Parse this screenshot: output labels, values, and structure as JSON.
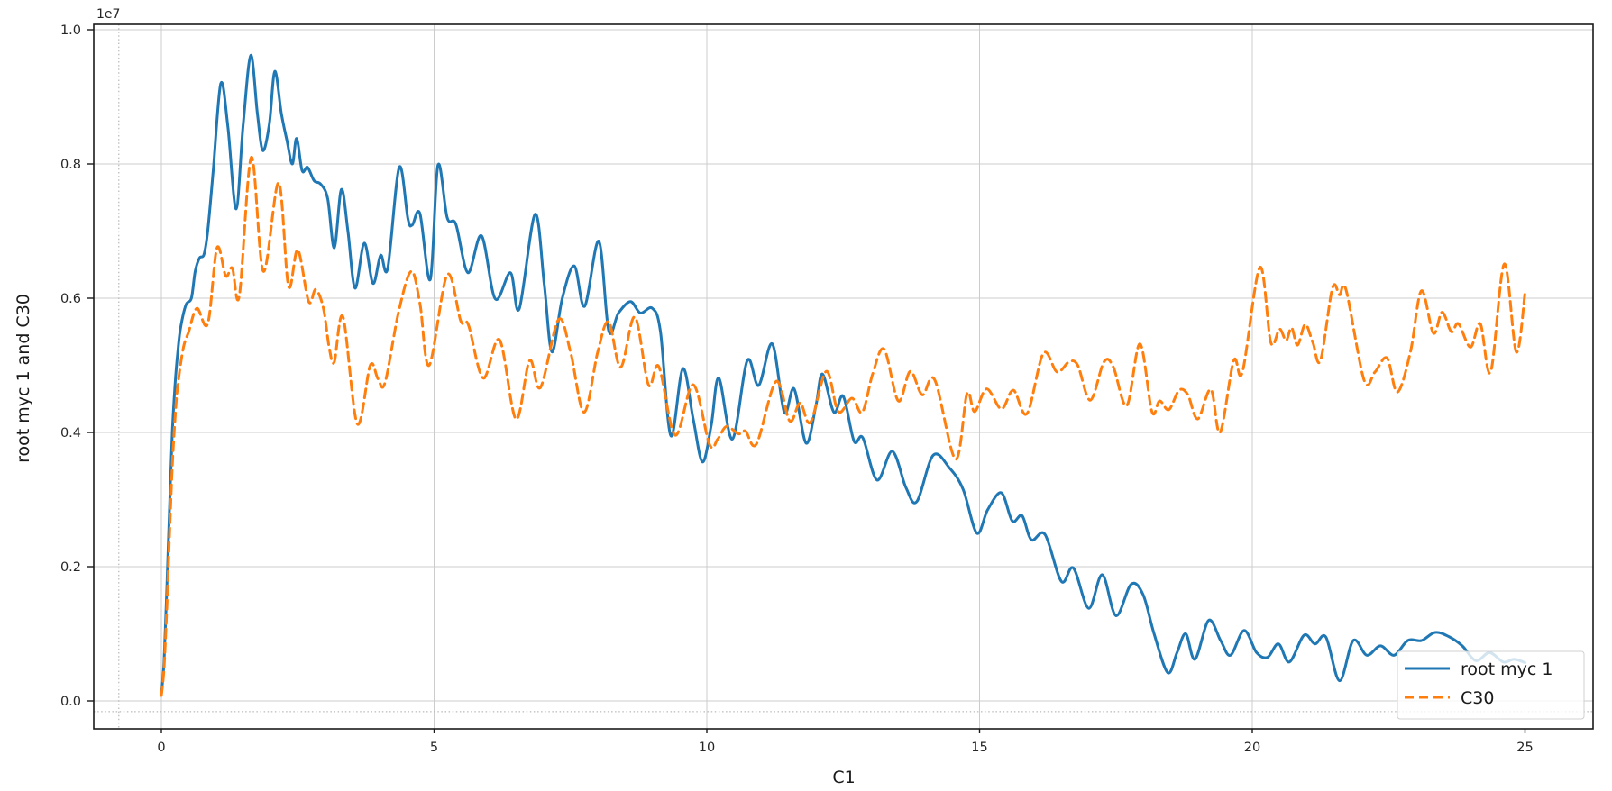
{
  "axes": {
    "offset_text": "1e7",
    "xtick_labels": [
      "0",
      "5",
      "10",
      "15",
      "20",
      "25"
    ],
    "ytick_labels": [
      "0.0",
      "0.2",
      "0.4",
      "0.6",
      "0.8",
      "1.0"
    ]
  },
  "legend": {
    "position": "lower right",
    "entries": [
      {
        "label": "root myc 1",
        "color": "#1f77b4",
        "linestyle": "solid"
      },
      {
        "label": "C30",
        "color": "#ff7f0e",
        "linestyle": "dashed"
      }
    ]
  },
  "colors": {
    "series_blue": "#1f77b4",
    "series_orange": "#ff7f0e",
    "grid": "#cccccc",
    "spine": "#1a1a1a",
    "text": "#262626",
    "legend_border": "#d0d0d0",
    "legend_bg": "rgba(255,255,255,0.8)",
    "guide_dotted": "#aaaaaa"
  },
  "chart_data": {
    "type": "line",
    "title": "",
    "xlabel": "C1",
    "ylabel": "root myc 1 and C30",
    "y_axis_offset_text": "1e7",
    "y_value_multiplier": 10000000,
    "xlim": [
      -1.25,
      26.25
    ],
    "ylim_in_1e7_units": [
      -0.043,
      1.008
    ],
    "grid": true,
    "legend_position": "lower right",
    "xticks": [
      0,
      5,
      10,
      15,
      20,
      25
    ],
    "yticks_in_1e7_units": [
      0.0,
      0.2,
      0.4,
      0.6,
      0.8,
      1.0
    ],
    "reference_lines": {
      "dotted_vline_x": -0.78,
      "dotted_hline_y_1e7": -0.016
    },
    "series": [
      {
        "name": "root myc 1",
        "color": "#1f77b4",
        "linestyle": "solid",
        "points_x_vs_y_in_1e7_units": [
          [
            0,
            0.01
          ],
          [
            0.05,
            0.06
          ],
          [
            0.1,
            0.17
          ],
          [
            0.15,
            0.29
          ],
          [
            0.2,
            0.4
          ],
          [
            0.25,
            0.47
          ],
          [
            0.3,
            0.52
          ],
          [
            0.35,
            0.555
          ],
          [
            0.45,
            0.59
          ],
          [
            0.55,
            0.6
          ],
          [
            0.62,
            0.64
          ],
          [
            0.7,
            0.66
          ],
          [
            0.78,
            0.665
          ],
          [
            0.85,
            0.7
          ],
          [
            0.95,
            0.79
          ],
          [
            1.09,
            0.92
          ],
          [
            1.22,
            0.855
          ],
          [
            1.37,
            0.733
          ],
          [
            1.5,
            0.86
          ],
          [
            1.64,
            0.962
          ],
          [
            1.76,
            0.875
          ],
          [
            1.86,
            0.82
          ],
          [
            1.98,
            0.86
          ],
          [
            2.08,
            0.938
          ],
          [
            2.2,
            0.875
          ],
          [
            2.3,
            0.836
          ],
          [
            2.4,
            0.8
          ],
          [
            2.48,
            0.838
          ],
          [
            2.58,
            0.79
          ],
          [
            2.68,
            0.795
          ],
          [
            2.8,
            0.775
          ],
          [
            2.92,
            0.77
          ],
          [
            3.05,
            0.748
          ],
          [
            3.17,
            0.675
          ],
          [
            3.3,
            0.762
          ],
          [
            3.42,
            0.7
          ],
          [
            3.55,
            0.615
          ],
          [
            3.72,
            0.682
          ],
          [
            3.88,
            0.622
          ],
          [
            4.02,
            0.664
          ],
          [
            4.15,
            0.645
          ],
          [
            4.36,
            0.795
          ],
          [
            4.52,
            0.718
          ],
          [
            4.6,
            0.709
          ],
          [
            4.74,
            0.726
          ],
          [
            4.93,
            0.628
          ],
          [
            5.07,
            0.798
          ],
          [
            5.24,
            0.72
          ],
          [
            5.4,
            0.71
          ],
          [
            5.62,
            0.638
          ],
          [
            5.87,
            0.693
          ],
          [
            6.12,
            0.599
          ],
          [
            6.4,
            0.638
          ],
          [
            6.56,
            0.584
          ],
          [
            6.85,
            0.725
          ],
          [
            7.02,
            0.62
          ],
          [
            7.16,
            0.52
          ],
          [
            7.35,
            0.6
          ],
          [
            7.57,
            0.648
          ],
          [
            7.76,
            0.588
          ],
          [
            8.02,
            0.685
          ],
          [
            8.2,
            0.552
          ],
          [
            8.38,
            0.578
          ],
          [
            8.6,
            0.595
          ],
          [
            8.78,
            0.578
          ],
          [
            9.0,
            0.585
          ],
          [
            9.15,
            0.55
          ],
          [
            9.34,
            0.395
          ],
          [
            9.56,
            0.495
          ],
          [
            9.75,
            0.42
          ],
          [
            9.92,
            0.356
          ],
          [
            10.08,
            0.41
          ],
          [
            10.22,
            0.481
          ],
          [
            10.47,
            0.39
          ],
          [
            10.74,
            0.507
          ],
          [
            10.95,
            0.47
          ],
          [
            11.2,
            0.532
          ],
          [
            11.42,
            0.43
          ],
          [
            11.6,
            0.465
          ],
          [
            11.82,
            0.384
          ],
          [
            12.0,
            0.44
          ],
          [
            12.12,
            0.487
          ],
          [
            12.33,
            0.43
          ],
          [
            12.5,
            0.454
          ],
          [
            12.7,
            0.387
          ],
          [
            12.86,
            0.392
          ],
          [
            13.12,
            0.329
          ],
          [
            13.4,
            0.372
          ],
          [
            13.65,
            0.318
          ],
          [
            13.85,
            0.297
          ],
          [
            14.15,
            0.366
          ],
          [
            14.45,
            0.347
          ],
          [
            14.7,
            0.315
          ],
          [
            14.95,
            0.25
          ],
          [
            15.15,
            0.285
          ],
          [
            15.4,
            0.31
          ],
          [
            15.6,
            0.268
          ],
          [
            15.78,
            0.276
          ],
          [
            15.95,
            0.24
          ],
          [
            16.2,
            0.248
          ],
          [
            16.5,
            0.178
          ],
          [
            16.72,
            0.198
          ],
          [
            17.0,
            0.138
          ],
          [
            17.25,
            0.188
          ],
          [
            17.5,
            0.127
          ],
          [
            17.78,
            0.174
          ],
          [
            18.0,
            0.158
          ],
          [
            18.2,
            0.1
          ],
          [
            18.45,
            0.042
          ],
          [
            18.62,
            0.072
          ],
          [
            18.78,
            0.1
          ],
          [
            18.95,
            0.062
          ],
          [
            19.2,
            0.12
          ],
          [
            19.42,
            0.09
          ],
          [
            19.6,
            0.068
          ],
          [
            19.85,
            0.105
          ],
          [
            20.08,
            0.072
          ],
          [
            20.28,
            0.065
          ],
          [
            20.48,
            0.085
          ],
          [
            20.68,
            0.058
          ],
          [
            20.95,
            0.098
          ],
          [
            21.15,
            0.085
          ],
          [
            21.35,
            0.095
          ],
          [
            21.6,
            0.03
          ],
          [
            21.85,
            0.09
          ],
          [
            22.1,
            0.068
          ],
          [
            22.35,
            0.082
          ],
          [
            22.6,
            0.068
          ],
          [
            22.85,
            0.09
          ],
          [
            23.1,
            0.09
          ],
          [
            23.35,
            0.102
          ],
          [
            23.6,
            0.096
          ],
          [
            23.85,
            0.082
          ],
          [
            24.1,
            0.06
          ],
          [
            24.35,
            0.072
          ],
          [
            24.6,
            0.058
          ],
          [
            24.8,
            0.062
          ],
          [
            25,
            0.057
          ]
        ]
      },
      {
        "name": "C30",
        "color": "#ff7f0e",
        "linestyle": "dashed",
        "points_x_vs_y_in_1e7_units": [
          [
            0,
            0.008
          ],
          [
            0.05,
            0.05
          ],
          [
            0.1,
            0.14
          ],
          [
            0.15,
            0.25
          ],
          [
            0.2,
            0.35
          ],
          [
            0.25,
            0.42
          ],
          [
            0.3,
            0.47
          ],
          [
            0.4,
            0.525
          ],
          [
            0.5,
            0.55
          ],
          [
            0.65,
            0.585
          ],
          [
            0.85,
            0.562
          ],
          [
            1.02,
            0.675
          ],
          [
            1.18,
            0.633
          ],
          [
            1.3,
            0.645
          ],
          [
            1.43,
            0.604
          ],
          [
            1.65,
            0.81
          ],
          [
            1.87,
            0.64
          ],
          [
            2.15,
            0.772
          ],
          [
            2.33,
            0.618
          ],
          [
            2.5,
            0.672
          ],
          [
            2.7,
            0.595
          ],
          [
            2.83,
            0.613
          ],
          [
            2.97,
            0.585
          ],
          [
            3.08,
            0.525
          ],
          [
            3.17,
            0.505
          ],
          [
            3.33,
            0.572
          ],
          [
            3.59,
            0.413
          ],
          [
            3.83,
            0.5
          ],
          [
            3.97,
            0.48
          ],
          [
            4.1,
            0.474
          ],
          [
            4.35,
            0.58
          ],
          [
            4.58,
            0.64
          ],
          [
            4.74,
            0.592
          ],
          [
            4.91,
            0.5
          ],
          [
            5.24,
            0.635
          ],
          [
            5.49,
            0.566
          ],
          [
            5.63,
            0.56
          ],
          [
            5.9,
            0.481
          ],
          [
            6.2,
            0.538
          ],
          [
            6.5,
            0.42
          ],
          [
            6.75,
            0.507
          ],
          [
            6.95,
            0.467
          ],
          [
            7.28,
            0.568
          ],
          [
            7.5,
            0.52
          ],
          [
            7.75,
            0.43
          ],
          [
            8.0,
            0.52
          ],
          [
            8.2,
            0.565
          ],
          [
            8.42,
            0.497
          ],
          [
            8.68,
            0.572
          ],
          [
            8.93,
            0.471
          ],
          [
            9.12,
            0.498
          ],
          [
            9.42,
            0.396
          ],
          [
            9.75,
            0.471
          ],
          [
            10.05,
            0.382
          ],
          [
            10.2,
            0.39
          ],
          [
            10.36,
            0.409
          ],
          [
            10.58,
            0.398
          ],
          [
            10.71,
            0.402
          ],
          [
            10.91,
            0.383
          ],
          [
            11.27,
            0.476
          ],
          [
            11.52,
            0.417
          ],
          [
            11.71,
            0.444
          ],
          [
            11.9,
            0.415
          ],
          [
            12.19,
            0.491
          ],
          [
            12.41,
            0.431
          ],
          [
            12.66,
            0.451
          ],
          [
            12.85,
            0.43
          ],
          [
            13.04,
            0.487
          ],
          [
            13.25,
            0.524
          ],
          [
            13.51,
            0.447
          ],
          [
            13.73,
            0.491
          ],
          [
            13.95,
            0.456
          ],
          [
            14.18,
            0.478
          ],
          [
            14.56,
            0.36
          ],
          [
            14.77,
            0.458
          ],
          [
            14.91,
            0.431
          ],
          [
            15.13,
            0.465
          ],
          [
            15.4,
            0.435
          ],
          [
            15.62,
            0.463
          ],
          [
            15.87,
            0.428
          ],
          [
            16.17,
            0.518
          ],
          [
            16.42,
            0.49
          ],
          [
            16.64,
            0.505
          ],
          [
            16.8,
            0.5
          ],
          [
            17.03,
            0.448
          ],
          [
            17.28,
            0.505
          ],
          [
            17.45,
            0.498
          ],
          [
            17.7,
            0.44
          ],
          [
            17.94,
            0.532
          ],
          [
            18.16,
            0.431
          ],
          [
            18.3,
            0.447
          ],
          [
            18.47,
            0.434
          ],
          [
            18.66,
            0.463
          ],
          [
            18.82,
            0.456
          ],
          [
            19.0,
            0.42
          ],
          [
            19.24,
            0.464
          ],
          [
            19.41,
            0.4
          ],
          [
            19.66,
            0.507
          ],
          [
            19.82,
            0.49
          ],
          [
            20.14,
            0.646
          ],
          [
            20.34,
            0.534
          ],
          [
            20.5,
            0.554
          ],
          [
            20.62,
            0.537
          ],
          [
            20.72,
            0.556
          ],
          [
            20.83,
            0.53
          ],
          [
            20.97,
            0.561
          ],
          [
            21.11,
            0.534
          ],
          [
            21.25,
            0.507
          ],
          [
            21.47,
            0.615
          ],
          [
            21.6,
            0.605
          ],
          [
            21.72,
            0.612
          ],
          [
            22.05,
            0.478
          ],
          [
            22.25,
            0.49
          ],
          [
            22.47,
            0.511
          ],
          [
            22.66,
            0.46
          ],
          [
            22.9,
            0.52
          ],
          [
            23.1,
            0.611
          ],
          [
            23.32,
            0.548
          ],
          [
            23.48,
            0.579
          ],
          [
            23.65,
            0.55
          ],
          [
            23.78,
            0.562
          ],
          [
            24.0,
            0.527
          ],
          [
            24.18,
            0.562
          ],
          [
            24.37,
            0.49
          ],
          [
            24.62,
            0.651
          ],
          [
            24.84,
            0.52
          ],
          [
            25,
            0.608
          ]
        ]
      }
    ]
  }
}
